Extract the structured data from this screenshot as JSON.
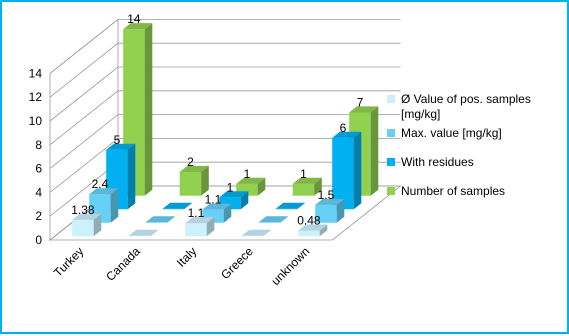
{
  "chart_data": {
    "type": "bar",
    "title": "",
    "xlabel": "",
    "ylabel": "",
    "ylim": [
      0,
      14
    ],
    "yticks": [
      0,
      2,
      4,
      6,
      8,
      10,
      12,
      14
    ],
    "ytick_labels": [
      "0",
      "2",
      "4",
      "6",
      "8",
      "10",
      "12",
      "14"
    ],
    "grid": true,
    "legend_position": "right",
    "style": "3d-clustered-depth",
    "categories": [
      "Turkey",
      "Canada",
      "Italy",
      "Greece",
      "unknown"
    ],
    "series": [
      {
        "name": "Ø Value of pos. samples [mg/kg]",
        "color": "#ccf0fc",
        "values": [
          1.38,
          0,
          1.1,
          0,
          0.48
        ],
        "labels": [
          "1.38",
          "",
          "1.1",
          "",
          "0.48"
        ]
      },
      {
        "name": "Max. value [mg/kg]",
        "color": "#66d0f6",
        "values": [
          2.4,
          0,
          1.1,
          0,
          1.5
        ],
        "labels": [
          "2.4",
          "",
          "1.1",
          "",
          "1.5"
        ]
      },
      {
        "name": "With residues",
        "color": "#00b0f0",
        "values": [
          5,
          0,
          1,
          0,
          6
        ],
        "labels": [
          "5",
          "",
          "1",
          "",
          "6"
        ]
      },
      {
        "name": "Number of samples",
        "color": "#92d050",
        "values": [
          14,
          2,
          1,
          1,
          7
        ],
        "labels": [
          "14",
          "2",
          "1",
          "1",
          "7"
        ]
      }
    ]
  }
}
